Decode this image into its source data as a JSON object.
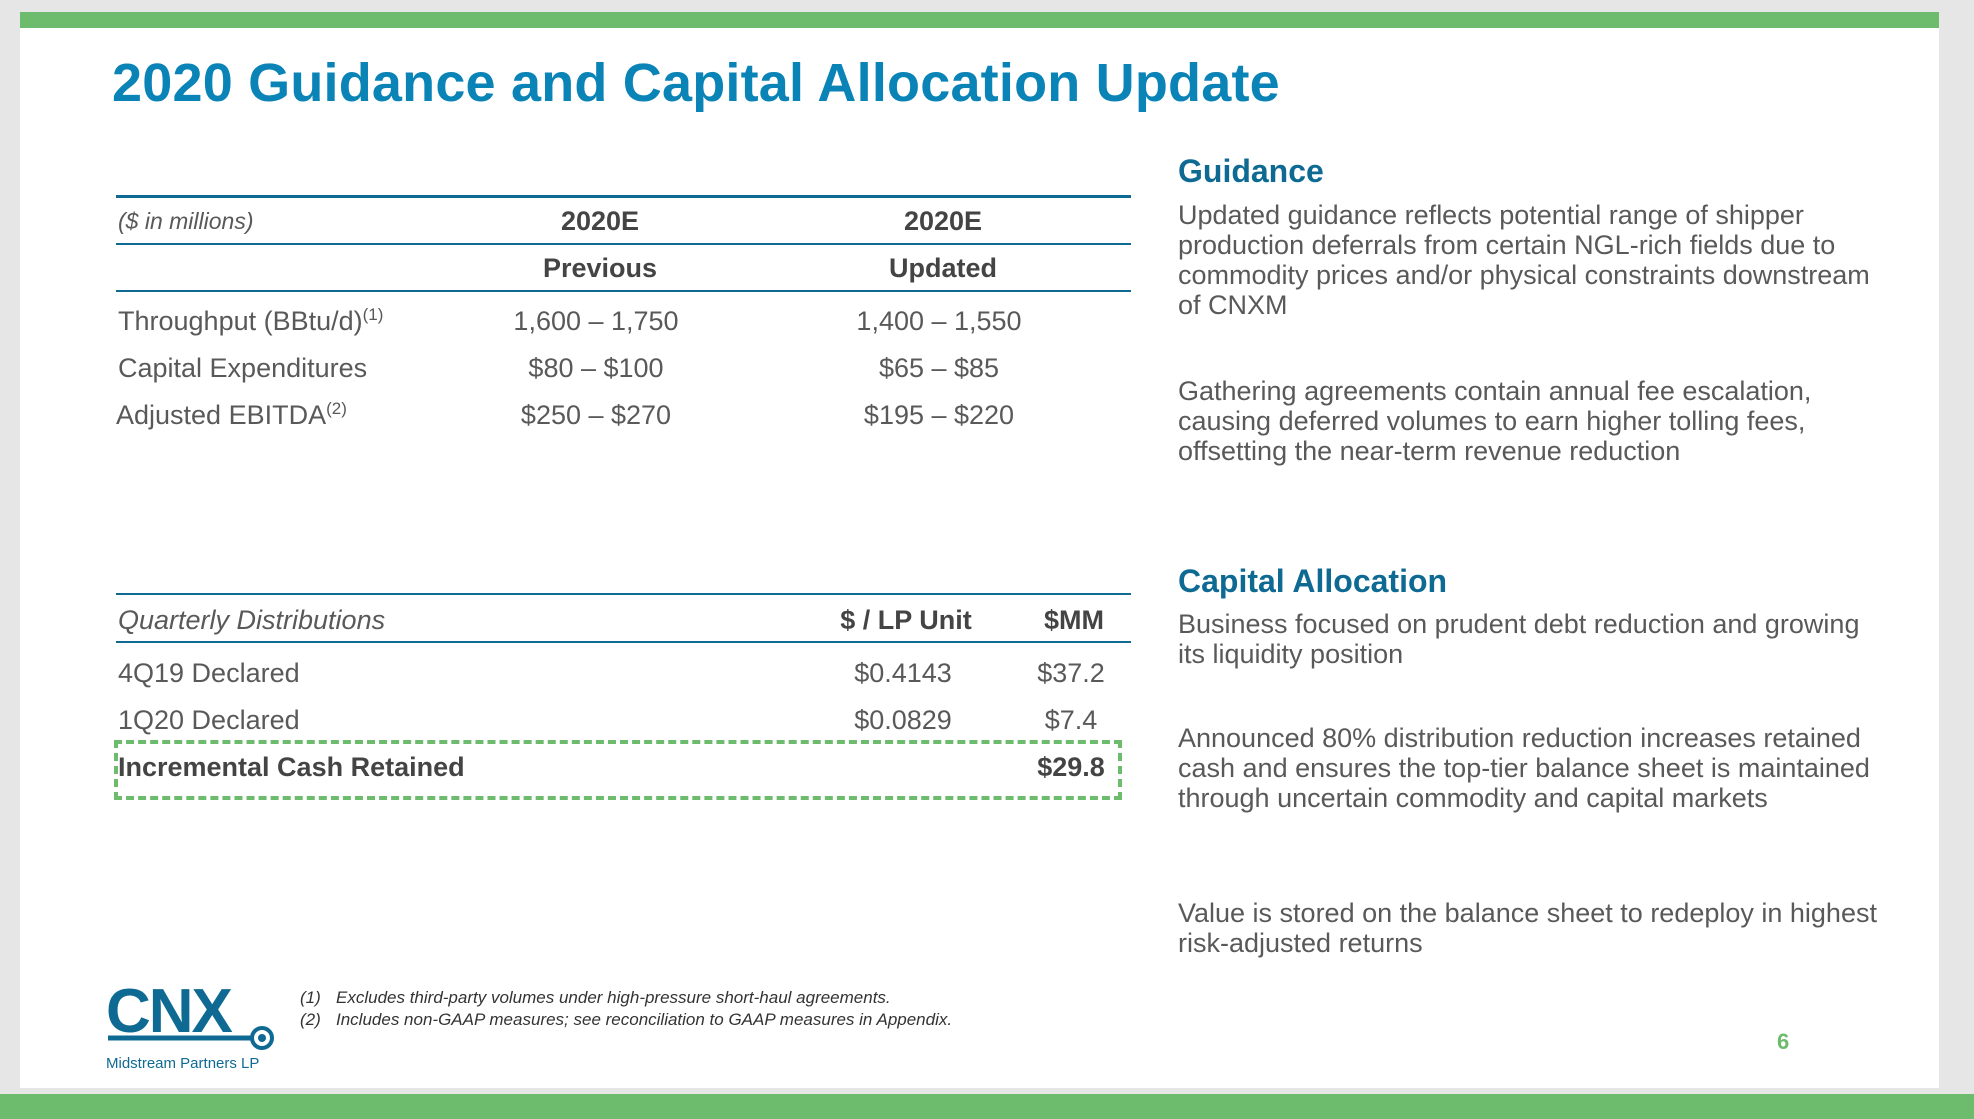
{
  "title": "2020 Guidance and Capital Allocation Update",
  "guidance_table": {
    "unit_label": "($ in millions)",
    "col1_line1": "2020E",
    "col1_line2": "Previous",
    "col2_line1": "2020E",
    "col2_line2": "Updated",
    "rows": [
      {
        "label": "Throughput (BBtu/d)",
        "footnote": "(1)",
        "previous": "1,600 – 1,750",
        "updated": "1,400 – 1,550"
      },
      {
        "label": "Capital Expenditures",
        "footnote": "",
        "previous": "$80 – $100",
        "updated": "$65 – $85"
      },
      {
        "label": "Adjusted EBITDA",
        "footnote": "(2)",
        "previous": "$250 – $270",
        "updated": "$195 – $220"
      }
    ]
  },
  "distributions_table": {
    "header_label": "Quarterly Distributions",
    "col_lp_unit": "$ / LP Unit",
    "col_mm": "$MM",
    "rows": [
      {
        "label": "4Q19 Declared",
        "lp_unit": "$0.4143",
        "mm": "$37.2"
      },
      {
        "label": "1Q20 Declared",
        "lp_unit": "$0.0829",
        "mm": "$7.4"
      }
    ],
    "total": {
      "label": "Incremental Cash Retained",
      "mm": "$29.8"
    }
  },
  "right_panel": {
    "guidance_heading": "Guidance",
    "guidance_p1": "Updated guidance reflects potential range of shipper production deferrals from certain NGL-rich fields due to commodity prices and/or physical constraints downstream of CNXM",
    "guidance_p2": "Gathering agreements contain annual fee escalation, causing deferred volumes to earn higher tolling fees, offsetting the near-term revenue reduction",
    "capital_heading": "Capital Allocation",
    "capital_p1": "Business focused on prudent debt reduction and growing its liquidity position",
    "capital_p2": "Announced 80% distribution reduction increases retained cash and ensures the top-tier balance sheet is maintained through uncertain commodity and capital markets",
    "capital_p3": "Value is stored on the balance sheet to redeploy in highest risk-adjusted returns"
  },
  "footnotes": [
    {
      "num": "(1)",
      "text": "Excludes third-party volumes under high-pressure short-haul agreements."
    },
    {
      "num": "(2)",
      "text": "Includes non-GAAP measures; see reconciliation to GAAP measures in Appendix."
    }
  ],
  "logo": {
    "name": "CNX",
    "tagline": "Midstream Partners LP"
  },
  "page_number": "6",
  "colors": {
    "accent_green": "#6dbb6d",
    "title_blue": "#0a83b7",
    "heading_blue": "#0f6a93"
  }
}
